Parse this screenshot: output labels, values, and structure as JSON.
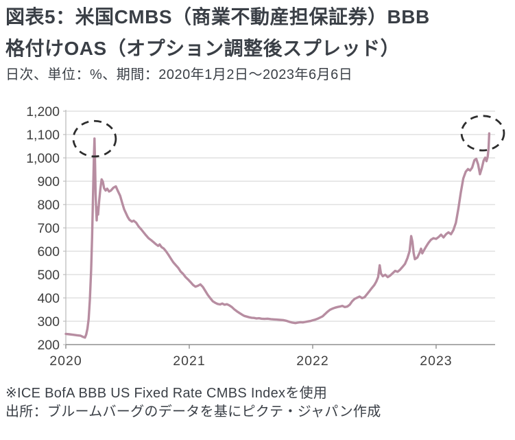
{
  "page": {
    "title_lines": [
      "図表5：米国CMBS（商業不動産担保証券）BBB",
      "格付けOAS（オプション調整後スプレッド）"
    ],
    "subtitle": "日次、単位：%、期間：2020年1月2日～2023年6月6日",
    "footnote": "※ICE BofA BBB US Fixed Rate CMBS Indexを使用",
    "source": "出所：ブルームバーグのデータを基にピクテ・ジャパン作成"
  },
  "style": {
    "text_color": "#3a3f46",
    "axis_label_color": "#3f3f3f",
    "grid_color": "#d9d9d9",
    "x_axis_color": "#8f8f8f",
    "y_axis_color": "#bdbdbd",
    "annotation_color": "#2d2d2d",
    "background": "#ffffff"
  },
  "chart_data": {
    "type": "line",
    "title": "米国CMBS BBB格付けOAS",
    "frequency": "日次",
    "unit": "%",
    "period": "2020年1月2日～2023年6月6日",
    "grid": "horizontal",
    "legend_position": "none",
    "line_color": "#b78da1",
    "x_axis": {
      "min": 2020.0,
      "max": 2023.478,
      "tick_years": [
        2020,
        2021,
        2022,
        2023
      ],
      "tick_labels": [
        "2020",
        "2021",
        "2022",
        "2023"
      ]
    },
    "y_axis": {
      "min": 200,
      "max": 1200,
      "tick_step": 100,
      "tick_values": [
        200,
        300,
        400,
        500,
        600,
        700,
        800,
        900,
        1000,
        1100,
        1200
      ],
      "tick_labels": [
        "200",
        "300",
        "400",
        "500",
        "600",
        "700",
        "800",
        "900",
        "1,000",
        "1,100",
        "1,200"
      ]
    },
    "annotations": [
      {
        "type": "dashed-ellipse",
        "note": "2020年3月の急騰",
        "cx_year": 2020.233,
        "cy_value": 1082,
        "rx_years": 0.172,
        "ry_value": 76
      },
      {
        "type": "dashed-ellipse",
        "note": "2023年6月の急騰",
        "cx_year": 2023.378,
        "cy_value": 1106,
        "rx_years": 0.172,
        "ry_value": 74
      }
    ],
    "series": [
      {
        "name": "米国CMBS BBB格付けOAS",
        "points": [
          [
            2020.0,
            246
          ],
          [
            2020.03,
            244
          ],
          [
            2020.06,
            242
          ],
          [
            2020.09,
            240
          ],
          [
            2020.12,
            238
          ],
          [
            2020.14,
            233
          ],
          [
            2020.155,
            230
          ],
          [
            2020.165,
            243
          ],
          [
            2020.175,
            268
          ],
          [
            2020.185,
            310
          ],
          [
            2020.195,
            395
          ],
          [
            2020.205,
            520
          ],
          [
            2020.213,
            660
          ],
          [
            2020.22,
            830
          ],
          [
            2020.227,
            1000
          ],
          [
            2020.232,
            1083
          ],
          [
            2020.237,
            965
          ],
          [
            2020.241,
            850
          ],
          [
            2020.246,
            775
          ],
          [
            2020.25,
            732
          ],
          [
            2020.255,
            788
          ],
          [
            2020.261,
            757
          ],
          [
            2020.27,
            815
          ],
          [
            2020.28,
            868
          ],
          [
            2020.29,
            908
          ],
          [
            2020.3,
            898
          ],
          [
            2020.31,
            870
          ],
          [
            2020.322,
            860
          ],
          [
            2020.335,
            868
          ],
          [
            2020.35,
            856
          ],
          [
            2020.365,
            860
          ],
          [
            2020.385,
            872
          ],
          [
            2020.405,
            878
          ],
          [
            2020.42,
            860
          ],
          [
            2020.44,
            838
          ],
          [
            2020.458,
            805
          ],
          [
            2020.472,
            780
          ],
          [
            2020.487,
            763
          ],
          [
            2020.5,
            748
          ],
          [
            2020.515,
            735
          ],
          [
            2020.535,
            727
          ],
          [
            2020.55,
            731
          ],
          [
            2020.57,
            722
          ],
          [
            2020.59,
            706
          ],
          [
            2020.61,
            694
          ],
          [
            2020.63,
            681
          ],
          [
            2020.65,
            668
          ],
          [
            2020.67,
            656
          ],
          [
            2020.69,
            648
          ],
          [
            2020.71,
            639
          ],
          [
            2020.73,
            630
          ],
          [
            2020.748,
            623
          ],
          [
            2020.76,
            629
          ],
          [
            2020.775,
            618
          ],
          [
            2020.792,
            612
          ],
          [
            2020.81,
            601
          ],
          [
            2020.83,
            586
          ],
          [
            2020.85,
            569
          ],
          [
            2020.87,
            553
          ],
          [
            2020.89,
            541
          ],
          [
            2020.91,
            529
          ],
          [
            2020.93,
            513
          ],
          [
            2020.95,
            503
          ],
          [
            2020.97,
            489
          ],
          [
            2020.99,
            479
          ],
          [
            2021.01,
            468
          ],
          [
            2021.03,
            456
          ],
          [
            2021.05,
            448
          ],
          [
            2021.07,
            452
          ],
          [
            2021.09,
            458
          ],
          [
            2021.11,
            447
          ],
          [
            2021.13,
            430
          ],
          [
            2021.15,
            413
          ],
          [
            2021.17,
            399
          ],
          [
            2021.19,
            386
          ],
          [
            2021.21,
            379
          ],
          [
            2021.23,
            374
          ],
          [
            2021.25,
            372
          ],
          [
            2021.268,
            376
          ],
          [
            2021.285,
            371
          ],
          [
            2021.305,
            373
          ],
          [
            2021.325,
            368
          ],
          [
            2021.345,
            361
          ],
          [
            2021.365,
            351
          ],
          [
            2021.385,
            343
          ],
          [
            2021.405,
            336
          ],
          [
            2021.425,
            329
          ],
          [
            2021.445,
            323
          ],
          [
            2021.465,
            320
          ],
          [
            2021.485,
            317
          ],
          [
            2021.505,
            315
          ],
          [
            2021.525,
            314
          ],
          [
            2021.545,
            312
          ],
          [
            2021.565,
            313
          ],
          [
            2021.585,
            311
          ],
          [
            2021.61,
            310
          ],
          [
            2021.635,
            311
          ],
          [
            2021.66,
            309
          ],
          [
            2021.685,
            308
          ],
          [
            2021.71,
            307
          ],
          [
            2021.735,
            306
          ],
          [
            2021.76,
            305
          ],
          [
            2021.785,
            302
          ],
          [
            2021.81,
            298
          ],
          [
            2021.835,
            294
          ],
          [
            2021.86,
            292
          ],
          [
            2021.88,
            294
          ],
          [
            2021.9,
            296
          ],
          [
            2021.92,
            295
          ],
          [
            2021.94,
            297
          ],
          [
            2021.96,
            299
          ],
          [
            2021.98,
            301
          ],
          [
            2022.0,
            304
          ],
          [
            2022.02,
            307
          ],
          [
            2022.04,
            311
          ],
          [
            2022.06,
            316
          ],
          [
            2022.08,
            321
          ],
          [
            2022.1,
            331
          ],
          [
            2022.12,
            341
          ],
          [
            2022.14,
            349
          ],
          [
            2022.16,
            354
          ],
          [
            2022.18,
            358
          ],
          [
            2022.2,
            361
          ],
          [
            2022.22,
            363
          ],
          [
            2022.24,
            366
          ],
          [
            2022.26,
            361
          ],
          [
            2022.28,
            363
          ],
          [
            2022.3,
            371
          ],
          [
            2022.32,
            386
          ],
          [
            2022.34,
            396
          ],
          [
            2022.36,
            401
          ],
          [
            2022.38,
            406
          ],
          [
            2022.4,
            399
          ],
          [
            2022.42,
            403
          ],
          [
            2022.44,
            416
          ],
          [
            2022.46,
            429
          ],
          [
            2022.48,
            443
          ],
          [
            2022.5,
            456
          ],
          [
            2022.515,
            470
          ],
          [
            2022.53,
            489
          ],
          [
            2022.543,
            540
          ],
          [
            2022.553,
            505
          ],
          [
            2022.568,
            493
          ],
          [
            2022.588,
            499
          ],
          [
            2022.608,
            489
          ],
          [
            2022.628,
            496
          ],
          [
            2022.648,
            506
          ],
          [
            2022.668,
            516
          ],
          [
            2022.688,
            512
          ],
          [
            2022.708,
            521
          ],
          [
            2022.728,
            533
          ],
          [
            2022.748,
            546
          ],
          [
            2022.768,
            571
          ],
          [
            2022.785,
            601
          ],
          [
            2022.798,
            665
          ],
          [
            2022.808,
            641
          ],
          [
            2022.818,
            592
          ],
          [
            2022.828,
            566
          ],
          [
            2022.848,
            573
          ],
          [
            2022.868,
            596
          ],
          [
            2022.878,
            611
          ],
          [
            2022.888,
            591
          ],
          [
            2022.898,
            601
          ],
          [
            2022.918,
            619
          ],
          [
            2022.938,
            636
          ],
          [
            2022.958,
            649
          ],
          [
            2022.978,
            656
          ],
          [
            2023.0,
            653
          ],
          [
            2023.02,
            661
          ],
          [
            2023.04,
            671
          ],
          [
            2023.06,
            659
          ],
          [
            2023.08,
            673
          ],
          [
            2023.1,
            681
          ],
          [
            2023.12,
            673
          ],
          [
            2023.14,
            691
          ],
          [
            2023.16,
            722
          ],
          [
            2023.18,
            782
          ],
          [
            2023.2,
            852
          ],
          [
            2023.22,
            912
          ],
          [
            2023.24,
            941
          ],
          [
            2023.258,
            952
          ],
          [
            2023.275,
            946
          ],
          [
            2023.292,
            958
          ],
          [
            2023.31,
            990
          ],
          [
            2023.325,
            996
          ],
          [
            2023.34,
            972
          ],
          [
            2023.355,
            930
          ],
          [
            2023.37,
            956
          ],
          [
            2023.385,
            989
          ],
          [
            2023.398,
            1001
          ],
          [
            2023.408,
            986
          ],
          [
            2023.418,
            1006
          ],
          [
            2023.425,
            1042
          ],
          [
            2023.43,
            1105
          ]
        ]
      }
    ]
  }
}
